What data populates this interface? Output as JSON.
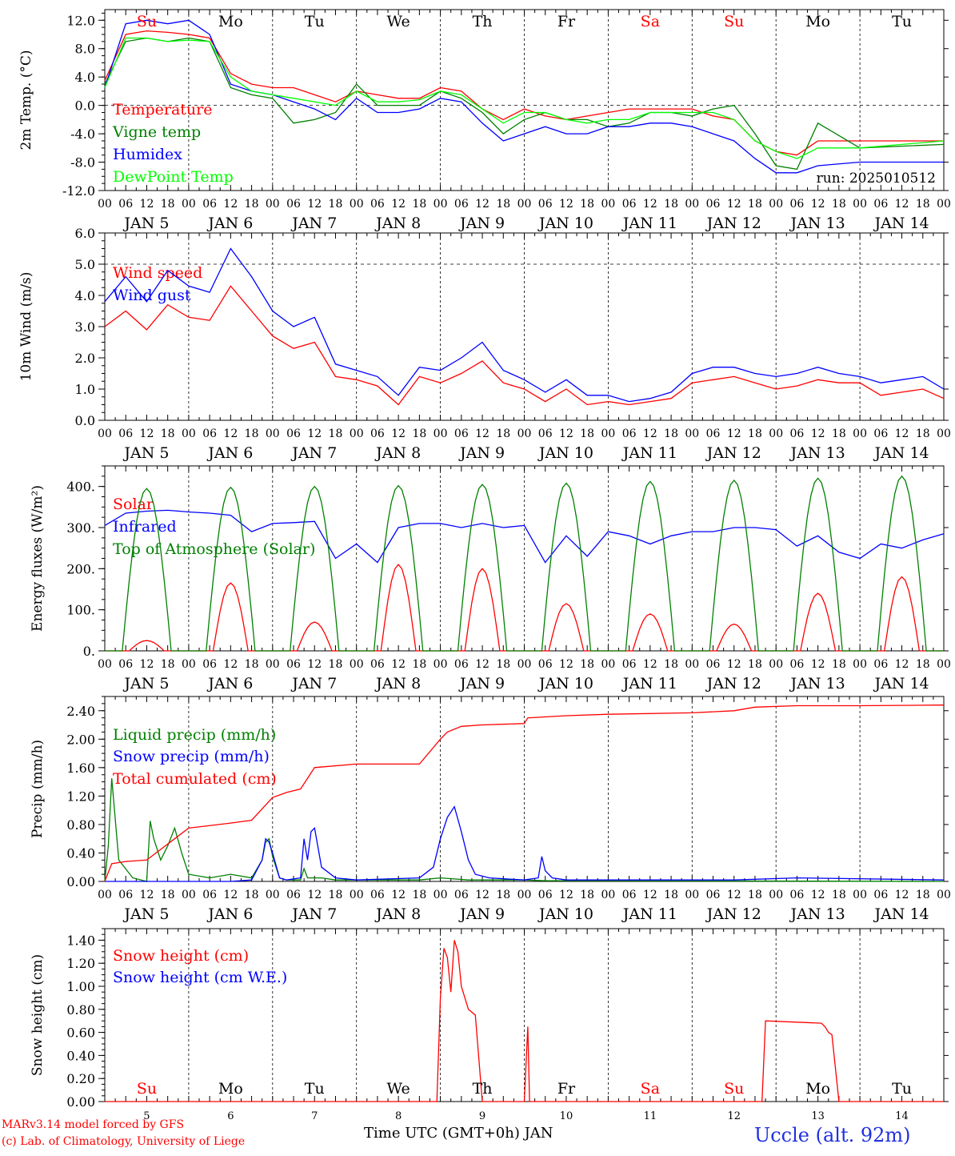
{
  "days": [
    "Su",
    "Mo",
    "Tu",
    "We",
    "Th",
    "Fr",
    "Sa",
    "Su",
    "Mo",
    "Tu"
  ],
  "weekend_days": [
    0,
    6,
    7
  ],
  "date_labels": [
    "JAN  5",
    "JAN  6",
    "JAN  7",
    "JAN  8",
    "JAN  9",
    "JAN 10",
    "JAN 11",
    "JAN 12",
    "JAN 13",
    "JAN 14"
  ],
  "day_numbers": [
    "5",
    "6",
    "7",
    "8",
    "9",
    "10",
    "11",
    "12",
    "13",
    "14"
  ],
  "hour_ticks": [
    "00",
    "06",
    "12",
    "18"
  ],
  "hour_end": "00",
  "xlabel": "Time UTC (GMT+0h) JAN",
  "footer": {
    "line1": "MARv3.14 model forced by GFS",
    "line2": "(c) Lab. of Climatology, University of Liege",
    "station": "Uccle (alt. 92m)"
  },
  "colors": {
    "red": "#ff0000",
    "green": "#008000",
    "blue": "#0000ff",
    "lightgreen": "#00ff00"
  },
  "chart_data": [
    {
      "type": "line",
      "ylabel": "2m Temp. (°C)",
      "ylim": [
        -12,
        13.5
      ],
      "yticks": [
        12,
        8,
        4,
        0,
        -4,
        -8,
        -12
      ],
      "ytick_labels": [
        "12.0",
        "8.0",
        "4.0",
        "0.0",
        "-4.0",
        "-8.0",
        "-12.0"
      ],
      "ref_line": 0,
      "annotation": "run: 2025010512",
      "x_hours": [
        0,
        6,
        12,
        18,
        24,
        30,
        36,
        42,
        48,
        54,
        60,
        66,
        72,
        78,
        84,
        90,
        96,
        102,
        108,
        114,
        120,
        126,
        132,
        138,
        144,
        150,
        156,
        162,
        168,
        174,
        180,
        186,
        192,
        198,
        204,
        210,
        216,
        222,
        228,
        234,
        240
      ],
      "series": [
        {
          "name": "Temperature",
          "color": "red",
          "values": [
            3.5,
            10,
            10.5,
            10.3,
            10,
            9.5,
            4.5,
            3,
            2.5,
            2.5,
            1.5,
            0.5,
            2,
            1.5,
            1,
            1,
            2.5,
            2,
            -0.5,
            -2,
            -0.5,
            -1.5,
            -2,
            -1.5,
            -1,
            -0.5,
            -0.5,
            -0.5,
            -0.5,
            -1.5,
            -2,
            -5,
            -6.5,
            -7,
            -5,
            -5,
            -5
          ]
        },
        {
          "name": "Vigne temp",
          "color": "green",
          "values": [
            3,
            9,
            9.5,
            9,
            9.5,
            9,
            2.5,
            1.5,
            1,
            -2.5,
            -2,
            -1,
            3,
            0,
            0,
            0,
            2,
            1,
            -1,
            -4,
            -2,
            -1,
            -2,
            -2,
            -3,
            -2.5,
            -1,
            -1,
            -1.5,
            -0.5,
            0,
            -4,
            -8.5,
            -9,
            -2.5,
            -6,
            -5.5
          ]
        },
        {
          "name": "Humidex",
          "color": "blue",
          "values": [
            2.5,
            11.5,
            12,
            11.5,
            12,
            10,
            3,
            2,
            1.5,
            0.5,
            -0.5,
            -2,
            1,
            -1,
            -1,
            -0.5,
            1,
            0.5,
            -2.5,
            -5,
            -4,
            -3,
            -4,
            -4,
            -3,
            -3,
            -2.5,
            -2.5,
            -3,
            -4,
            -5,
            -7.5,
            -9.5,
            -9.5,
            -8.5,
            -8,
            -8
          ]
        },
        {
          "name": "DewPoint Temp",
          "color": "lightgreen",
          "values": [
            2.5,
            9.5,
            9.5,
            9,
            9.2,
            9,
            4,
            2,
            1.5,
            1,
            0.5,
            0,
            2,
            0.5,
            0.5,
            0.8,
            2,
            1.5,
            -0.5,
            -2.5,
            -1,
            -1,
            -2,
            -2.5,
            -2,
            -2,
            -1,
            -1,
            -1,
            -1,
            -2,
            -5,
            -6.5,
            -7.5,
            -6,
            -6,
            -5
          ]
        }
      ],
      "series_x": [
        0,
        6,
        12,
        18,
        24,
        30,
        36,
        42,
        48,
        54,
        60,
        66,
        72,
        78,
        84,
        90,
        96,
        102,
        108,
        114,
        120,
        126,
        132,
        138,
        144,
        150,
        156,
        162,
        168,
        174,
        180,
        186,
        192,
        198,
        204,
        216,
        240
      ]
    },
    {
      "type": "line",
      "ylabel": "10m Wind (m/s)",
      "ylim": [
        0,
        6
      ],
      "yticks": [
        6,
        5,
        4,
        3,
        2,
        1,
        0
      ],
      "ytick_labels": [
        "6.0",
        "5.0",
        "4.0",
        "3.0",
        "2.0",
        "1.0",
        "0.0"
      ],
      "ref_line": 5,
      "series_x": [
        0,
        6,
        12,
        18,
        24,
        30,
        36,
        42,
        48,
        54,
        60,
        66,
        72,
        78,
        84,
        90,
        96,
        102,
        108,
        114,
        120,
        126,
        132,
        138,
        144,
        150,
        156,
        162,
        168,
        174,
        180,
        186,
        192,
        198,
        204,
        210,
        216,
        222,
        228,
        234,
        240
      ],
      "series": [
        {
          "name": "Wind speed",
          "color": "red",
          "values": [
            3,
            3.5,
            2.9,
            3.7,
            3.3,
            3.2,
            4.3,
            3.5,
            2.7,
            2.3,
            2.5,
            1.4,
            1.3,
            1.1,
            0.5,
            1.4,
            1.2,
            1.5,
            1.9,
            1.2,
            1.0,
            0.6,
            1.0,
            0.5,
            0.6,
            0.5,
            0.6,
            0.7,
            1.2,
            1.3,
            1.4,
            1.2,
            1.0,
            1.1,
            1.3,
            1.2,
            1.2,
            0.8,
            0.9,
            1.0,
            0.7
          ]
        },
        {
          "name": "Wind gust",
          "color": "blue",
          "values": [
            3.8,
            4.6,
            3.8,
            4.8,
            4.3,
            4.1,
            5.5,
            4.6,
            3.5,
            3.0,
            3.3,
            1.8,
            1.6,
            1.4,
            0.8,
            1.7,
            1.6,
            2.0,
            2.5,
            1.6,
            1.3,
            0.9,
            1.3,
            0.8,
            0.8,
            0.6,
            0.7,
            0.9,
            1.5,
            1.7,
            1.7,
            1.5,
            1.4,
            1.5,
            1.7,
            1.5,
            1.4,
            1.2,
            1.3,
            1.4,
            1.0
          ]
        }
      ]
    },
    {
      "type": "line",
      "ylabel": "Energy fluxes (W/m²)",
      "ylim": [
        0,
        450
      ],
      "yticks": [
        400,
        300,
        200,
        100,
        0
      ],
      "ytick_labels": [
        "400.",
        "300.",
        "200.",
        "100.",
        "0."
      ],
      "series": [
        {
          "name": "Solar",
          "color": "red",
          "peaks": [
            25,
            165,
            70,
            210,
            200,
            115,
            90,
            65,
            140,
            180
          ]
        },
        {
          "name": "Infrared",
          "color": "blue",
          "x": [
            0,
            6,
            12,
            18,
            24,
            30,
            36,
            42,
            48,
            54,
            60,
            66,
            72,
            78,
            84,
            90,
            96,
            102,
            108,
            114,
            120,
            126,
            132,
            138,
            144,
            150,
            156,
            162,
            168,
            174,
            180,
            186,
            192,
            198,
            204,
            210,
            216,
            222,
            228,
            234,
            240
          ],
          "values": [
            305,
            335,
            340,
            342,
            338,
            335,
            330,
            290,
            310,
            312,
            315,
            225,
            260,
            215,
            300,
            310,
            310,
            300,
            310,
            300,
            305,
            215,
            280,
            230,
            290,
            280,
            260,
            280,
            290,
            290,
            300,
            300,
            295,
            255,
            280,
            240,
            225,
            260,
            250,
            270,
            285
          ]
        },
        {
          "name": "Top of Atmosphere (Solar)",
          "color": "green",
          "peaks": [
            395,
            398,
            400,
            402,
            405,
            408,
            412,
            415,
            420,
            425
          ]
        }
      ]
    },
    {
      "type": "line",
      "ylabel": "Precip (mm/h)",
      "ylim": [
        0,
        2.6
      ],
      "yticks": [
        2.4,
        2.0,
        1.6,
        1.2,
        0.8,
        0.4,
        0
      ],
      "ytick_labels": [
        "2.40",
        "2.00",
        "1.60",
        "1.20",
        "0.80",
        "0.40",
        "0.00"
      ],
      "series": [
        {
          "name": "Liquid precip (mm/h)",
          "color": "green",
          "x": [
            0,
            1,
            2,
            4,
            8,
            12,
            13,
            14,
            16,
            18,
            20,
            22,
            24,
            30,
            36,
            42,
            45,
            46,
            47,
            48,
            50,
            52,
            56,
            57,
            58,
            62,
            66,
            72,
            90,
            96,
            104,
            112,
            120,
            126,
            132,
            240
          ],
          "values": [
            0,
            0.5,
            1.45,
            0.3,
            0.05,
            0,
            0.85,
            0.6,
            0.3,
            0.5,
            0.75,
            0.4,
            0.1,
            0.05,
            0.1,
            0.05,
            0.3,
            0.55,
            0.6,
            0.35,
            0.05,
            0.02,
            0.02,
            0.18,
            0.05,
            0.05,
            0.02,
            0.02,
            0.02,
            0.05,
            0.02,
            0.02,
            0.02,
            0.01,
            0.01,
            0
          ]
        },
        {
          "name": "Snow precip (mm/h)",
          "color": "blue",
          "x": [
            0,
            36,
            42,
            45,
            46,
            47,
            48,
            50,
            52,
            56,
            57,
            58,
            59,
            60,
            62,
            66,
            72,
            90,
            94,
            96,
            98,
            100,
            102,
            104,
            106,
            110,
            120,
            124,
            125,
            126,
            128,
            132,
            144,
            180,
            198,
            240
          ],
          "values": [
            0,
            0,
            0.02,
            0.3,
            0.6,
            0.55,
            0.4,
            0.05,
            0.02,
            0.05,
            0.6,
            0.3,
            0.7,
            0.75,
            0.2,
            0.05,
            0.02,
            0.05,
            0.2,
            0.6,
            0.9,
            1.05,
            0.7,
            0.3,
            0.1,
            0.05,
            0.02,
            0.05,
            0.35,
            0.15,
            0.05,
            0.02,
            0.02,
            0.02,
            0.05,
            0.02
          ]
        },
        {
          "name": "Total cumulated (cm)",
          "color": "red",
          "x": [
            0,
            2,
            6,
            12,
            16,
            20,
            24,
            36,
            42,
            48,
            52,
            56,
            60,
            72,
            84,
            90,
            96,
            98,
            102,
            108,
            120,
            121,
            132,
            144,
            168,
            180,
            186,
            198,
            216,
            240
          ],
          "values": [
            0,
            0.25,
            0.28,
            0.3,
            0.45,
            0.6,
            0.75,
            0.82,
            0.86,
            1.18,
            1.25,
            1.3,
            1.6,
            1.65,
            1.65,
            1.65,
            2.0,
            2.1,
            2.18,
            2.2,
            2.22,
            2.3,
            2.33,
            2.35,
            2.37,
            2.4,
            2.45,
            2.47,
            2.47,
            2.48
          ]
        }
      ]
    },
    {
      "type": "line",
      "ylabel": "Snow height (cm)",
      "ylim": [
        0,
        1.5
      ],
      "yticks": [
        1.4,
        1.2,
        1.0,
        0.8,
        0.6,
        0.4,
        0.2,
        0
      ],
      "ytick_labels": [
        "1.40",
        "1.20",
        "1.00",
        "0.80",
        "0.60",
        "0.40",
        "0.20",
        "0.00"
      ],
      "series": [
        {
          "name": "Snow height (cm)",
          "color": "red",
          "x": [
            0,
            95,
            96,
            97,
            98,
            99,
            100,
            101,
            102,
            104,
            106,
            108,
            110,
            120,
            121,
            121.5,
            122,
            188,
            189,
            205,
            206,
            207,
            208,
            210,
            240
          ],
          "values": [
            0,
            0,
            0.9,
            1.33,
            1.25,
            0.95,
            1.4,
            1.3,
            1.0,
            0.8,
            0.75,
            0,
            0,
            0,
            0.65,
            0,
            0,
            0,
            0.7,
            0.68,
            0.65,
            0.6,
            0.58,
            0,
            0
          ]
        },
        {
          "name": "Snow height (cm W.E.)",
          "color": "blue",
          "x": [],
          "values": []
        }
      ]
    }
  ]
}
